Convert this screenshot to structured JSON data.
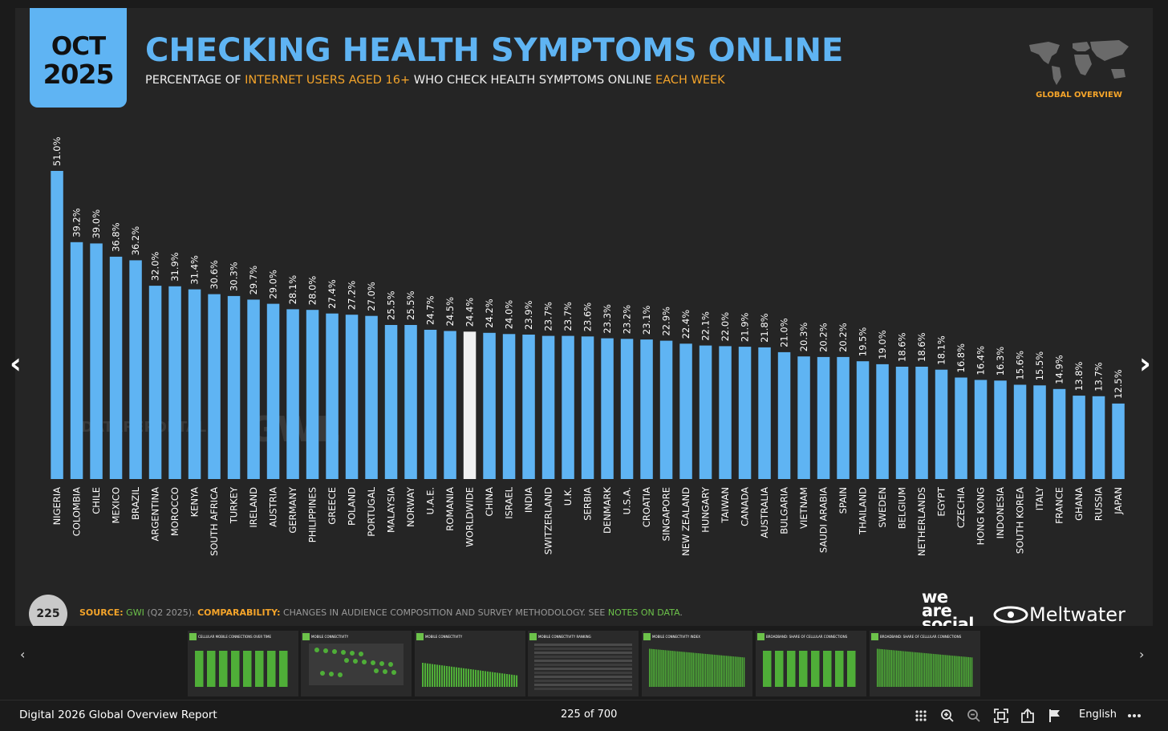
{
  "slide": {
    "date_month": "OCT",
    "date_year": "2025",
    "title": "CHECKING HEALTH SYMPTOMS ONLINE",
    "subtitle_parts": [
      "PERCENTAGE OF ",
      "INTERNET USERS AGED 16+",
      " WHO CHECK HEALTH SYMPTOMS ONLINE ",
      "EACH WEEK"
    ],
    "global_label": "GLOBAL OVERVIEW",
    "watermark": "DATAREPORTAL",
    "watermark2": "GWI.",
    "page_number": "225",
    "source_label": "SOURCE:",
    "source_value": "GWI",
    "source_detail": " (Q2 2025). ",
    "comparability_label": "COMPARABILITY:",
    "comparability_text": " CHANGES IN AUDIENCE COMPOSITION AND SURVEY METHODOLOGY. SEE ",
    "notes_link": "NOTES ON DATA",
    "notes_end": ".",
    "logo_we": "we",
    "logo_are": "are",
    "logo_social": "social",
    "logo_meltwater": "Meltwater"
  },
  "colors": {
    "accent": "#5fb4f3",
    "highlight": "#f4a42a",
    "worldwide_bar": "#f0f0f0",
    "link_green": "#6cc24a"
  },
  "chart_data": {
    "type": "bar",
    "title": "CHECKING HEALTH SYMPTOMS ONLINE",
    "xlabel": "",
    "ylabel": "",
    "ylim": [
      0,
      51
    ],
    "categories": [
      "NIGERIA",
      "COLOMBIA",
      "CHILE",
      "MEXICO",
      "BRAZIL",
      "ARGENTINA",
      "MOROCCO",
      "KENYA",
      "SOUTH AFRICA",
      "TURKEY",
      "IRELAND",
      "AUSTRIA",
      "GERMANY",
      "PHILIPPINES",
      "GREECE",
      "POLAND",
      "PORTUGAL",
      "MALAYSIA",
      "NORWAY",
      "U.A.E.",
      "ROMANIA",
      "WORLDWIDE",
      "CHINA",
      "ISRAEL",
      "INDIA",
      "SWITZERLAND",
      "U.K.",
      "SERBIA",
      "DENMARK",
      "U.S.A.",
      "CROATIA",
      "SINGAPORE",
      "NEW ZEALAND",
      "HUNGARY",
      "TAIWAN",
      "CANADA",
      "AUSTRALIA",
      "BULGARIA",
      "VIETNAM",
      "SAUDI ARABIA",
      "SPAIN",
      "THAILAND",
      "SWEDEN",
      "BELGIUM",
      "NETHERLANDS",
      "EGYPT",
      "CZECHIA",
      "HONG KONG",
      "INDONESIA",
      "SOUTH KOREA",
      "ITALY",
      "FRANCE",
      "GHANA",
      "RUSSIA",
      "JAPAN"
    ],
    "values": [
      51.0,
      39.2,
      39.0,
      36.8,
      36.2,
      32.0,
      31.9,
      31.4,
      30.6,
      30.3,
      29.7,
      29.0,
      28.1,
      28.0,
      27.4,
      27.2,
      27.0,
      25.5,
      25.5,
      24.7,
      24.5,
      24.4,
      24.2,
      24.0,
      23.9,
      23.7,
      23.7,
      23.6,
      23.3,
      23.2,
      23.1,
      22.9,
      22.4,
      22.1,
      22.0,
      21.9,
      21.8,
      21.0,
      20.3,
      20.2,
      20.2,
      19.5,
      19.0,
      18.6,
      18.6,
      18.1,
      16.8,
      16.4,
      16.3,
      15.6,
      15.5,
      14.9,
      13.8,
      13.7,
      12.5
    ],
    "value_labels": [
      "51.0%",
      "39.2%",
      "39.0%",
      "36.8%",
      "36.2%",
      "32.0%",
      "31.9%",
      "31.4%",
      "30.6%",
      "30.3%",
      "29.7%",
      "29.0%",
      "28.1%",
      "28.0%",
      "27.4%",
      "27.2%",
      "27.0%",
      "25.5%",
      "25.5%",
      "24.7%",
      "24.5%",
      "24.4%",
      "24.2%",
      "24.0%",
      "23.9%",
      "23.7%",
      "23.7%",
      "23.6%",
      "23.3%",
      "23.2%",
      "23.1%",
      "22.9%",
      "22.4%",
      "22.1%",
      "22.0%",
      "21.9%",
      "21.8%",
      "21.0%",
      "20.3%",
      "20.2%",
      "20.2%",
      "19.5%",
      "19.0%",
      "18.6%",
      "18.6%",
      "18.1%",
      "16.8%",
      "16.4%",
      "16.3%",
      "15.6%",
      "15.5%",
      "14.9%",
      "13.8%",
      "13.7%",
      "12.5%"
    ],
    "highlight_category": "WORLDWIDE"
  },
  "thumbnails": [
    {
      "title": "CELLULAR MOBILE CONNECTIONS OVER TIME"
    },
    {
      "title": "MOBILE CONNECTIVITY"
    },
    {
      "title": "MOBILE CONNECTIVITY"
    },
    {
      "title": "MOBILE CONNECTIVITY RANKING"
    },
    {
      "title": "MOBILE CONNECTIVITY INDEX"
    },
    {
      "title": "BROADBAND: SHARE OF CELLULAR CONNECTIONS"
    },
    {
      "title": "BROADBAND: SHARE OF CELLULAR CONNECTIONS"
    }
  ],
  "viewer": {
    "doc_title": "Digital 2026 Global Overview Report",
    "page_counter": "225 of 700",
    "language": "English",
    "prev_arrow": "‹",
    "next_arrow": "›",
    "strip_prev": "‹",
    "strip_next": "›",
    "icons": [
      "grid-icon",
      "zoom-in-icon",
      "zoom-out-icon",
      "fullscreen-icon",
      "share-icon",
      "flag-icon",
      "more-icon"
    ]
  }
}
